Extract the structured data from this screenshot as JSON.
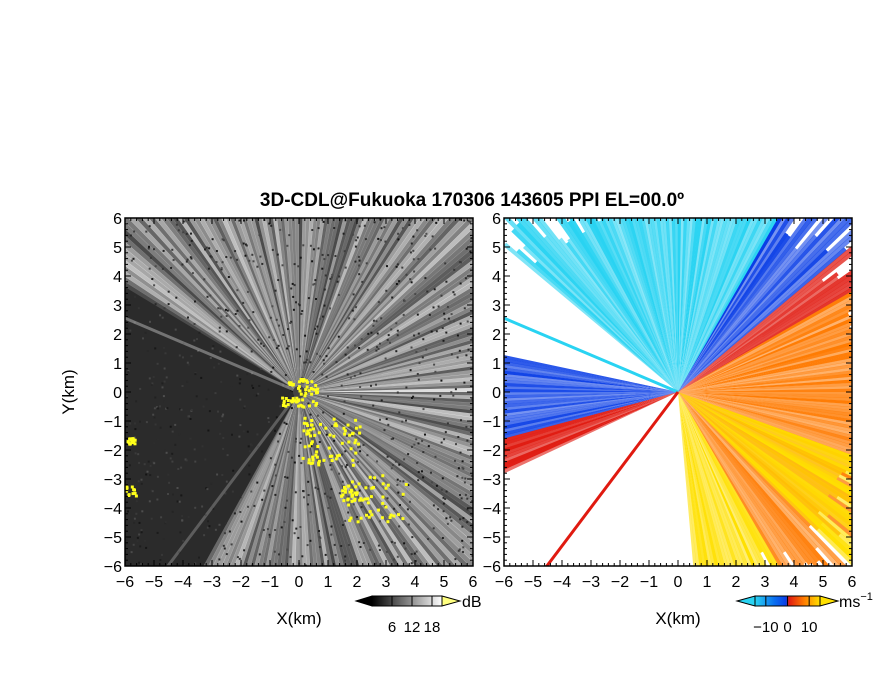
{
  "title": "3D-CDL@Fukuoka 170306 143605 PPI EL=00.0º",
  "chart_data": [
    {
      "type": "heatmap",
      "panel": "left",
      "quantity_unit": "dB",
      "xlabel": "X(km)",
      "ylabel": "Y(km)",
      "xlim": [
        -6,
        6
      ],
      "ylim": [
        -6,
        6
      ],
      "xticks": [
        "−6",
        "−5",
        "−4",
        "−3",
        "−2",
        "−1",
        "0",
        "1",
        "2",
        "3",
        "4",
        "5",
        "6"
      ],
      "yticks": [
        "6",
        "5",
        "4",
        "3",
        "2",
        "1",
        "0",
        "−1",
        "−2",
        "−3",
        "−4",
        "−5",
        "−6"
      ],
      "colorbar": {
        "unit": "dB",
        "ticks": [
          {
            "value": 6,
            "label": "6"
          },
          {
            "value": 12,
            "label": "12"
          },
          {
            "value": 18,
            "label": "18"
          }
        ],
        "range": [
          0,
          21
        ],
        "colors": [
          "#000000",
          "#ffffff"
        ]
      },
      "colors": {
        "background": "#2b2b2b",
        "beam": "#ffffff",
        "flag": "#ffff1a"
      },
      "sector_gap_deg": [
        148,
        240
      ]
    },
    {
      "type": "heatmap",
      "panel": "right",
      "xlabel": "X(km)",
      "xlim": [
        -6,
        6
      ],
      "ylim": [
        -6,
        6
      ],
      "xticks": [
        "−6",
        "−5",
        "−4",
        "−3",
        "−2",
        "−1",
        "0",
        "1",
        "2",
        "3",
        "4",
        "5",
        "6"
      ],
      "yticks": [
        "6",
        "5",
        "4",
        "3",
        "2",
        "1",
        "0",
        "−1",
        "−2",
        "−3",
        "−4",
        "−5",
        "−6"
      ],
      "colorbar": {
        "unit": "ms",
        "unit_sup": "−1",
        "ticks": [
          {
            "value": -10,
            "label": "−10"
          },
          {
            "value": 0,
            "label": "0"
          },
          {
            "value": 10,
            "label": "10"
          }
        ],
        "range": [
          -15,
          15
        ],
        "colors": [
          "#29d3f2",
          "#0a3ee6",
          "#e01a10",
          "#ff7a00",
          "#ffe000"
        ]
      },
      "colors": {
        "cyan": "#29d3f2",
        "blue": "#0a3ee6",
        "red": "#e01a10",
        "orange": "#ff7a00",
        "yellow": "#ffe000"
      }
    }
  ]
}
